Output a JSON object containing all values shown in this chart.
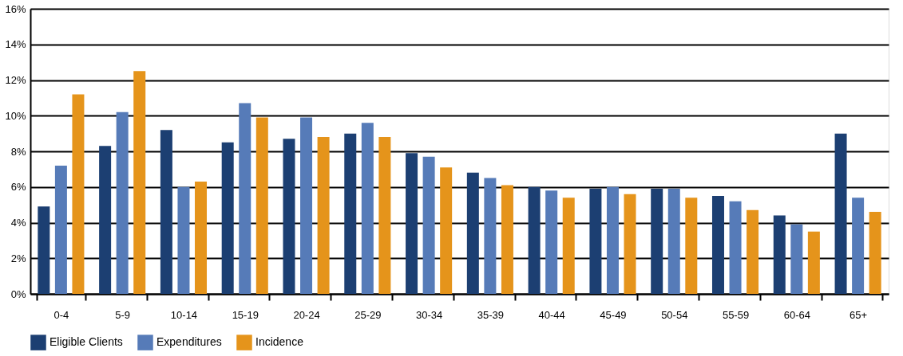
{
  "chart_data": {
    "type": "bar",
    "categories": [
      "0-4",
      "5-9",
      "10-14",
      "15-19",
      "20-24",
      "25-29",
      "30-34",
      "35-39",
      "40-44",
      "45-49",
      "50-54",
      "55-59",
      "60-64",
      "65+"
    ],
    "series": [
      {
        "name": "Eligible Clients",
        "color": "#1c3f72",
        "values": [
          4.9,
          8.3,
          9.2,
          8.5,
          8.7,
          9.0,
          7.9,
          6.8,
          6.0,
          5.9,
          5.9,
          5.5,
          4.4,
          9.0
        ]
      },
      {
        "name": "Expenditures",
        "color": "#567bb8",
        "values": [
          7.2,
          10.2,
          6.0,
          10.7,
          9.9,
          9.6,
          7.7,
          6.5,
          5.8,
          6.0,
          5.9,
          5.2,
          3.9,
          5.4
        ]
      },
      {
        "name": "Incidence",
        "color": "#e5941b",
        "values": [
          11.2,
          12.5,
          6.3,
          9.9,
          8.8,
          8.8,
          7.1,
          6.1,
          5.4,
          5.6,
          5.4,
          4.7,
          3.5,
          4.6
        ]
      }
    ],
    "ylim": [
      0,
      16
    ],
    "yticks": [
      {
        "value": 0,
        "label": "0%"
      },
      {
        "value": 2,
        "label": "2%"
      },
      {
        "value": 4,
        "label": "4%"
      },
      {
        "value": 6,
        "label": "6%"
      },
      {
        "value": 8,
        "label": "8%"
      },
      {
        "value": 10,
        "label": "10%"
      },
      {
        "value": 12,
        "label": "12%"
      },
      {
        "value": 14,
        "label": "14%"
      },
      {
        "value": 16,
        "label": "16%"
      }
    ],
    "grid": "y",
    "legend": "bottom"
  }
}
